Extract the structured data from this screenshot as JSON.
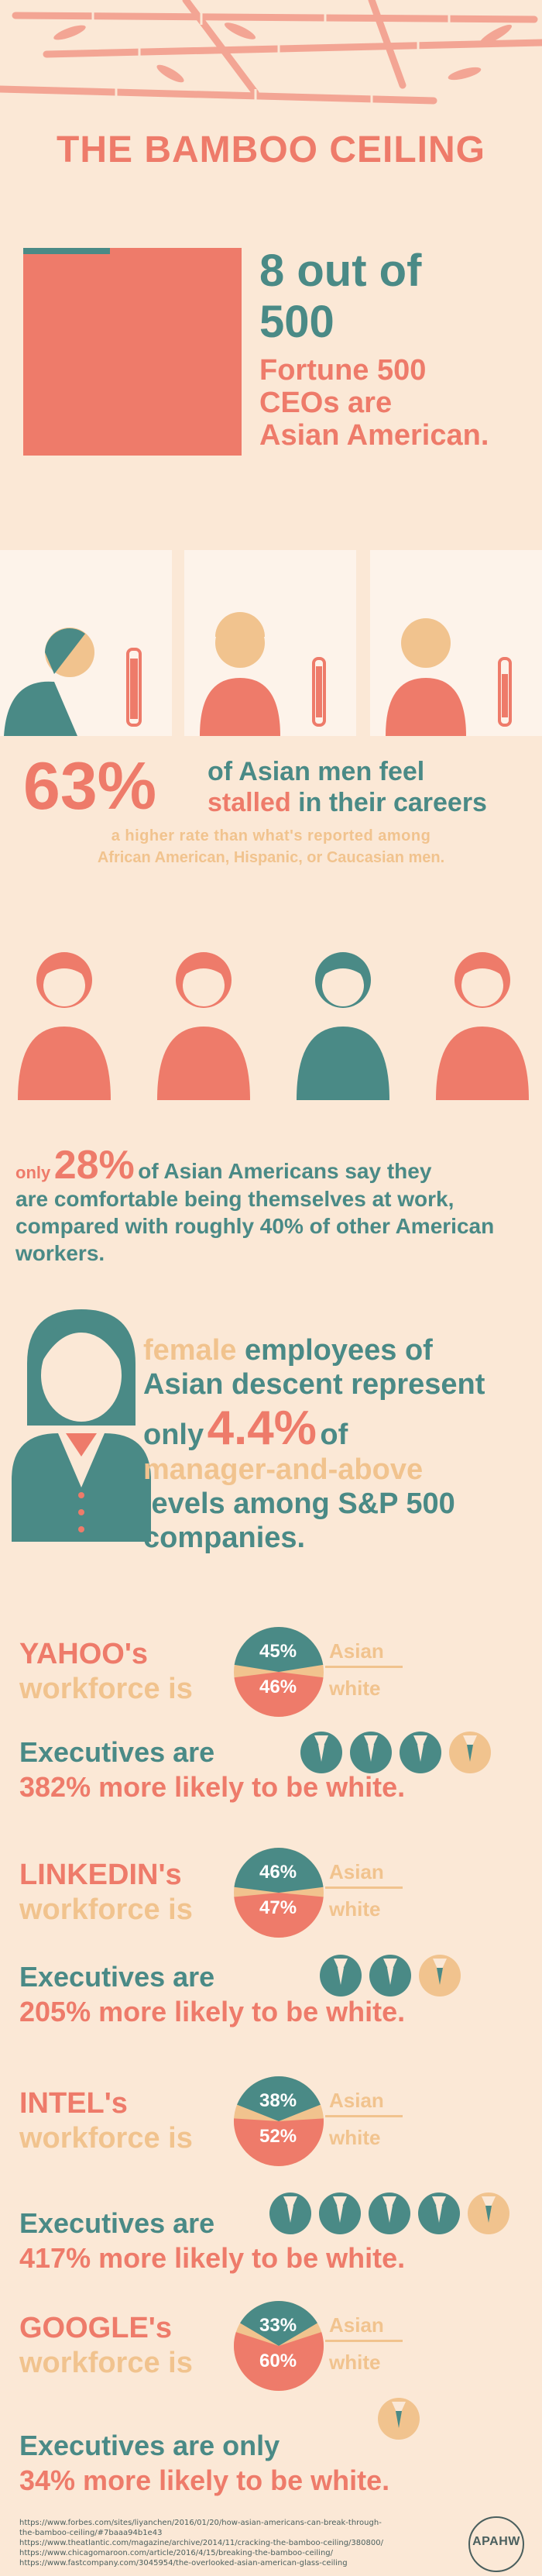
{
  "title": "THE BAMBOO CEILING",
  "ceo": {
    "line1": "8 out of",
    "line2": "500",
    "line3": "Fortune 500",
    "line4": "CEOs are",
    "line5": "Asian American."
  },
  "stall": {
    "percent": "63%",
    "text1": "of Asian men feel",
    "text2": "stalled in their careers",
    "sub1": "a higher rate than what's reported among",
    "sub2": "African American, Hispanic, or Caucasian men."
  },
  "comfort": {
    "only": "only",
    "percent": "28%",
    "t1": "of Asian Americans say they",
    "t2": "are comfortable being themselves at work,",
    "t3": "compared with roughly 40% of other American",
    "t4": "workers."
  },
  "female": {
    "w1": "female",
    "w2": "employees of",
    "l2": "Asian descent represent",
    "only": "only",
    "percent": "4.4%",
    "of": "of",
    "l4": "manager-and-above",
    "l5": "levels among S&P 500",
    "l6": "companies."
  },
  "companies": [
    {
      "name": "YAHOO's",
      "workforce": "workforce is",
      "asian": "45%",
      "white": "46%",
      "asian_label": "Asian",
      "white_label": "white",
      "exec1": "Executives are",
      "exec2": "382% more likely to be white.",
      "asian_share": 0.45,
      "white_share": 0.46,
      "exec_icons": 4
    },
    {
      "name": "LINKEDIN's",
      "workforce": "workforce is",
      "asian": "46%",
      "white": "47%",
      "asian_label": "Asian",
      "white_label": "white",
      "exec1": "Executives are",
      "exec2": "205% more likely to be white.",
      "asian_share": 0.46,
      "white_share": 0.47,
      "exec_icons": 3
    },
    {
      "name": "INTEL's",
      "workforce": "workforce is",
      "asian": "38%",
      "white": "52%",
      "asian_label": "Asian",
      "white_label": "white",
      "exec1": "Executives are",
      "exec2": "417% more likely to be white.",
      "asian_share": 0.38,
      "white_share": 0.52,
      "exec_icons": 5
    },
    {
      "name": "GOOGLE's",
      "workforce": "workforce is",
      "asian": "33%",
      "white": "60%",
      "asian_label": "Asian",
      "white_label": "white",
      "exec1": "Executives are only",
      "exec2": "34% more likely to be white.",
      "asian_share": 0.33,
      "white_share": 0.6,
      "exec_icons": 1
    }
  ],
  "sources": [
    "https://www.forbes.com/sites/liyanchen/2016/01/20/how-asian-americans-can-break-through-",
    "the-bamboo-ceiling/#7baaa94b1e43",
    "https://www.theatlantic.com/magazine/archive/2014/11/cracking-the-bamboo-ceiling/380800/",
    "https://www.chicagomaroon.com/article/2016/4/15/breaking-the-bamboo-ceiling/",
    "https://www.fastcompany.com/3045954/the-overlooked-asian-american-glass-ceiling"
  ],
  "logo": {
    "text": "APAHW"
  },
  "colors": {
    "coral": "#ee7b6a",
    "teal": "#4a8a86",
    "tan": "#f1c38e",
    "bg": "#fbe8d6"
  }
}
